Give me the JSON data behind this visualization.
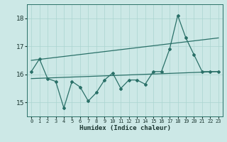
{
  "xlabel": "Humidex (Indice chaleur)",
  "bg_color": "#cce8e6",
  "grid_color": "#aad4d0",
  "line_color": "#2a7068",
  "xlim": [
    -0.5,
    23.5
  ],
  "ylim": [
    14.5,
    18.5
  ],
  "yticks": [
    15,
    16,
    17,
    18
  ],
  "xticks": [
    0,
    1,
    2,
    3,
    4,
    5,
    6,
    7,
    8,
    9,
    10,
    11,
    12,
    13,
    14,
    15,
    16,
    17,
    18,
    19,
    20,
    21,
    22,
    23
  ],
  "x": [
    0,
    1,
    2,
    3,
    4,
    5,
    6,
    7,
    8,
    9,
    10,
    11,
    12,
    13,
    14,
    15,
    16,
    17,
    18,
    19,
    20,
    21,
    22,
    23
  ],
  "y_main": [
    16.1,
    16.55,
    15.85,
    15.75,
    14.8,
    15.75,
    15.55,
    15.05,
    15.35,
    15.8,
    16.05,
    15.5,
    15.8,
    15.8,
    15.65,
    16.1,
    16.1,
    16.9,
    18.1,
    17.3,
    16.7,
    16.1,
    16.1,
    16.1
  ],
  "y_trend1_x": [
    0,
    23
  ],
  "y_trend1_y": [
    16.5,
    17.3
  ],
  "y_trend2_x": [
    0,
    23
  ],
  "y_trend2_y": [
    15.85,
    16.1
  ]
}
